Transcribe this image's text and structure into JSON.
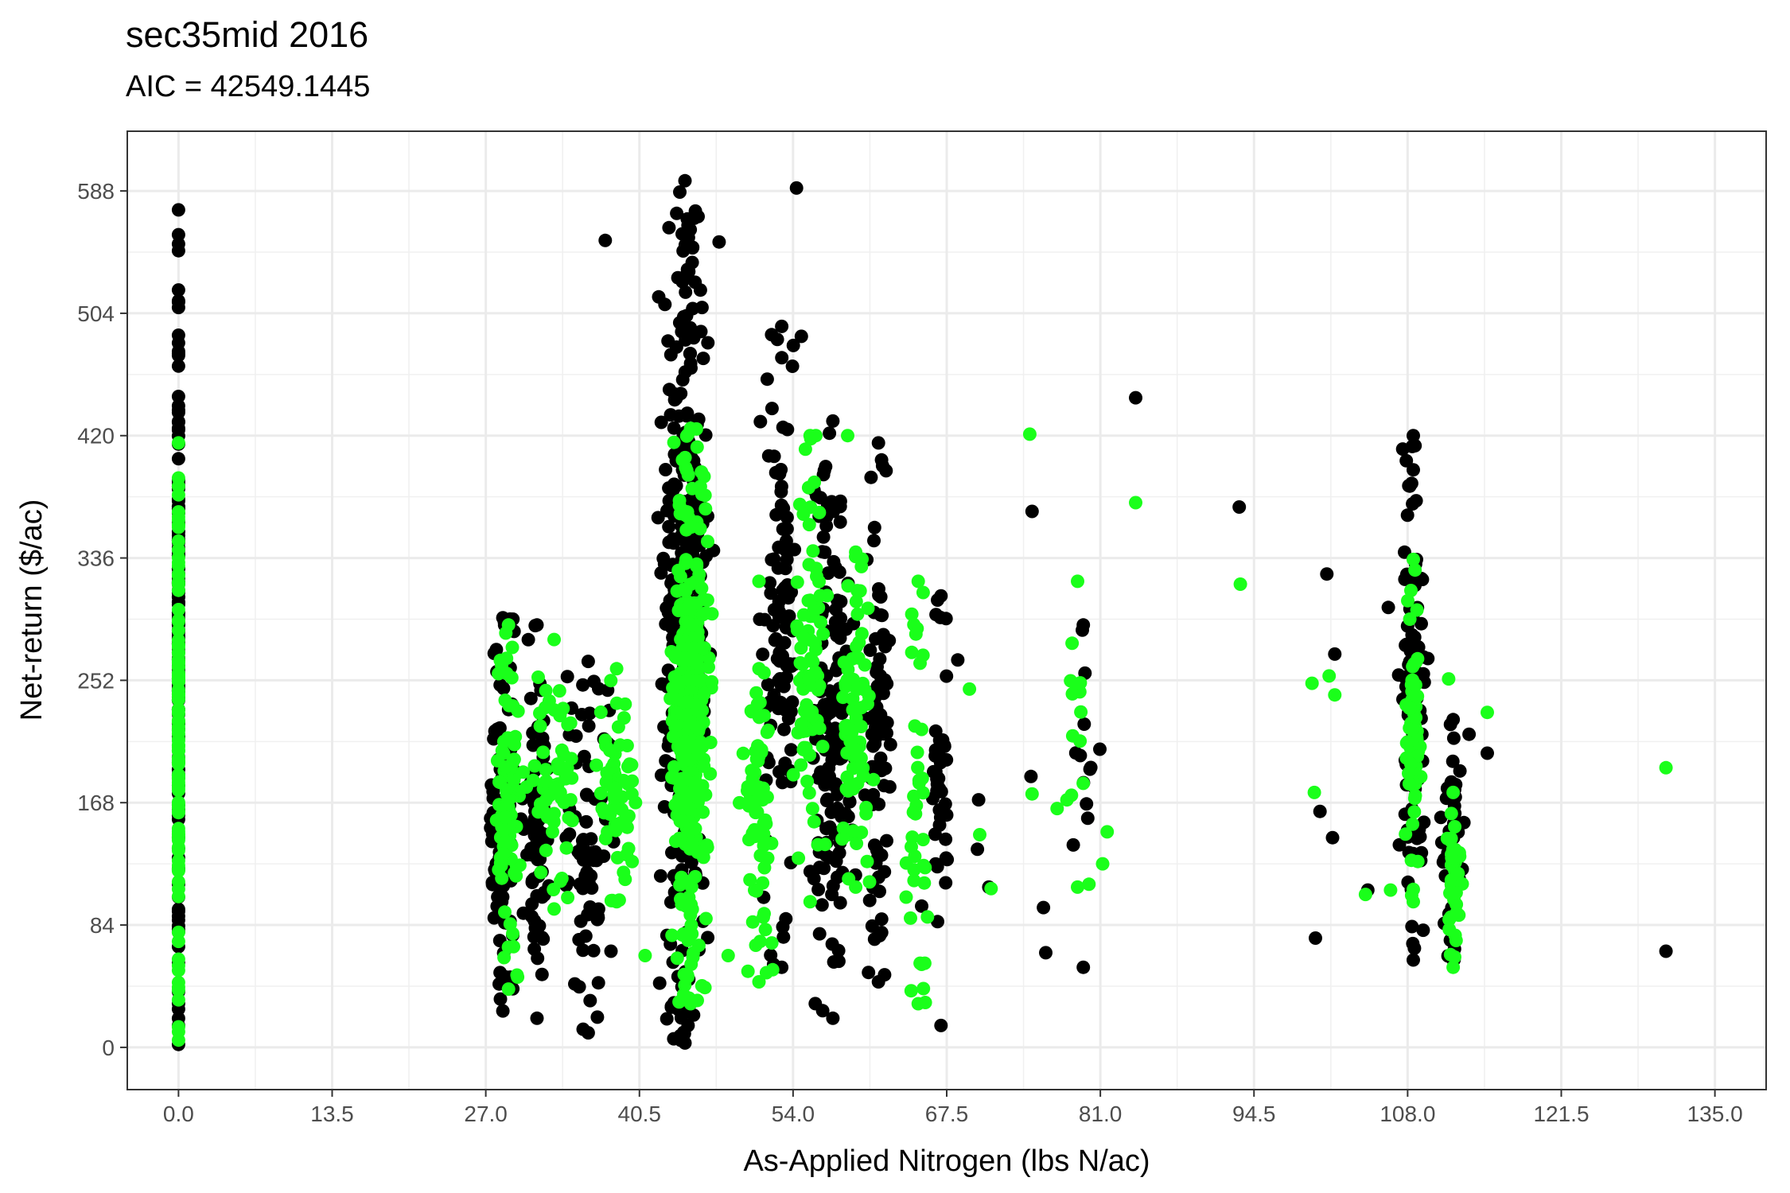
{
  "chart_data": {
    "type": "scatter",
    "title": "sec35mid 2016",
    "subtitle": "AIC = 42549.1445",
    "xlabel": "As-Applied Nitrogen (lbs N/ac)",
    "ylabel": "Net-return ($/ac)",
    "xlim": [
      -4.5,
      139.5
    ],
    "ylim": [
      -29,
      629
    ],
    "x_ticks": [
      0,
      13.5,
      27,
      40.5,
      54,
      67.5,
      81,
      94.5,
      108,
      121.5,
      135
    ],
    "x_tick_labels": [
      "0.0",
      "13.5",
      "27.0",
      "40.5",
      "54.0",
      "67.5",
      "81.0",
      "94.5",
      "108.0",
      "121.5",
      "135.0"
    ],
    "y_ticks": [
      0,
      84,
      168,
      252,
      336,
      420,
      504,
      588
    ],
    "y_tick_labels": [
      "0",
      "84",
      "168",
      "252",
      "336",
      "420",
      "504",
      "588"
    ],
    "grid": true,
    "legend": "none",
    "series": [
      {
        "color": "#000000",
        "clusters": [
          {
            "x": 0.0,
            "xs": 0.0,
            "ymin": 2,
            "ymax": 575,
            "n": 150
          },
          {
            "x": 28.5,
            "xs": 1.2,
            "ymin": 25,
            "ymax": 295,
            "n": 100
          },
          {
            "x": 31.5,
            "xs": 1.5,
            "ymin": 20,
            "ymax": 290,
            "n": 70
          },
          {
            "x": 36.0,
            "xs": 2.5,
            "ymin": 10,
            "ymax": 265,
            "n": 70
          },
          {
            "x": 44.5,
            "xs": 2.3,
            "ymin": 3,
            "ymax": 595,
            "n": 400
          },
          {
            "x": 53.0,
            "xs": 1.8,
            "ymin": 55,
            "ymax": 495,
            "n": 110
          },
          {
            "x": 57.5,
            "xs": 2.2,
            "ymin": 20,
            "ymax": 430,
            "n": 150
          },
          {
            "x": 61.5,
            "xs": 1.2,
            "ymin": 45,
            "ymax": 415,
            "n": 80
          },
          {
            "x": 67.0,
            "xs": 1.3,
            "ymin": 15,
            "ymax": 310,
            "n": 40
          },
          {
            "x": 79.5,
            "xs": 1.4,
            "ymin": 55,
            "ymax": 290,
            "n": 12
          },
          {
            "x": 108.5,
            "xs": 1.3,
            "ymin": 60,
            "ymax": 420,
            "n": 90
          },
          {
            "x": 112.0,
            "xs": 1.0,
            "ymin": 60,
            "ymax": 225,
            "n": 45
          }
        ],
        "points": [
          [
            84.1,
            446
          ],
          [
            93.2,
            371
          ],
          [
            100.9,
            325
          ],
          [
            101.6,
            270
          ],
          [
            99.9,
            75
          ],
          [
            100.3,
            162
          ],
          [
            101.4,
            144
          ],
          [
            115.0,
            202
          ],
          [
            75.0,
            368
          ],
          [
            74.9,
            186
          ],
          [
            76.0,
            96
          ],
          [
            76.2,
            65
          ],
          [
            71.2,
            110
          ],
          [
            70.3,
            170
          ],
          [
            70.2,
            136
          ],
          [
            65.3,
            97
          ],
          [
            54.3,
            590
          ],
          [
            44.6,
            530
          ],
          [
            47.5,
            553
          ],
          [
            46.0,
            508
          ],
          [
            37.5,
            554
          ],
          [
            38.0,
            66
          ],
          [
            104.5,
            108
          ],
          [
            106.3,
            302
          ],
          [
            113.4,
            215
          ],
          [
            130.7,
            66
          ]
        ]
      },
      {
        "color": "#1AFF1A",
        "clusters": [
          {
            "x": 0.0,
            "xs": 0.0,
            "ymin": 5,
            "ymax": 415,
            "n": 120
          },
          {
            "x": 29.0,
            "xs": 1.3,
            "ymin": 40,
            "ymax": 290,
            "n": 80
          },
          {
            "x": 33.0,
            "xs": 2.5,
            "ymin": 95,
            "ymax": 280,
            "n": 60
          },
          {
            "x": 38.5,
            "xs": 1.8,
            "ymin": 100,
            "ymax": 260,
            "n": 60
          },
          {
            "x": 45.0,
            "xs": 2.0,
            "ymin": 30,
            "ymax": 425,
            "n": 350
          },
          {
            "x": 51.0,
            "xs": 1.5,
            "ymin": 45,
            "ymax": 260,
            "n": 70
          },
          {
            "x": 55.5,
            "xs": 1.5,
            "ymin": 100,
            "ymax": 420,
            "n": 80
          },
          {
            "x": 59.5,
            "xs": 1.5,
            "ymin": 110,
            "ymax": 340,
            "n": 80
          },
          {
            "x": 65.0,
            "xs": 1.3,
            "ymin": 30,
            "ymax": 320,
            "n": 40
          },
          {
            "x": 79.0,
            "xs": 1.2,
            "ymin": 110,
            "ymax": 320,
            "n": 12
          },
          {
            "x": 108.5,
            "xs": 0.9,
            "ymin": 100,
            "ymax": 335,
            "n": 70
          },
          {
            "x": 112.0,
            "xs": 0.8,
            "ymin": 55,
            "ymax": 175,
            "n": 40
          }
        ],
        "points": [
          [
            74.8,
            421
          ],
          [
            84.1,
            374
          ],
          [
            93.3,
            318
          ],
          [
            75.0,
            174
          ],
          [
            77.2,
            164
          ],
          [
            81.6,
            148
          ],
          [
            81.2,
            126
          ],
          [
            71.4,
            109
          ],
          [
            70.4,
            146
          ],
          [
            69.5,
            246
          ],
          [
            80.0,
            112
          ],
          [
            99.6,
            250
          ],
          [
            101.1,
            255
          ],
          [
            101.6,
            242
          ],
          [
            99.8,
            175
          ],
          [
            104.3,
            105
          ],
          [
            106.5,
            108
          ],
          [
            111.6,
            253
          ],
          [
            115.0,
            230
          ],
          [
            130.7,
            192
          ],
          [
            41.0,
            63
          ],
          [
            48.3,
            63
          ],
          [
            51.0,
            320
          ],
          [
            56.0,
            420
          ],
          [
            58.8,
            420
          ]
        ]
      }
    ]
  }
}
